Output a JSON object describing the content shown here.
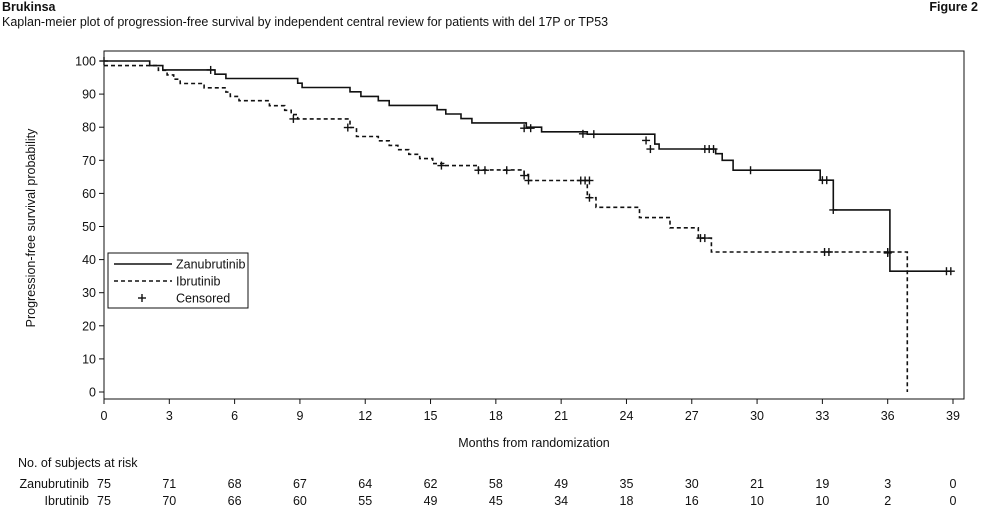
{
  "header": {
    "brand": "Brukinsa",
    "figure_label": "Figure 2",
    "subtitle": "Kaplan-meier plot of progression-free survival by independent central review for patients with del 17P or TP53"
  },
  "chart_data": {
    "type": "line",
    "title": "Kaplan-meier plot of progression-free survival by independent central review for patients with del 17P or TP53",
    "xlabel": "Months from randomization",
    "ylabel": "Progression-free survival probability",
    "xlim": [
      0,
      39
    ],
    "ylim": [
      0,
      100
    ],
    "xticks": [
      0,
      3,
      6,
      9,
      12,
      15,
      18,
      21,
      24,
      27,
      30,
      33,
      36,
      39
    ],
    "yticks": [
      0,
      10,
      20,
      30,
      40,
      50,
      60,
      70,
      80,
      90,
      100
    ],
    "grid": false,
    "legend_position": "lower-left",
    "legend": [
      "Zanubrutinib",
      "Ibrutinib",
      "Censored"
    ],
    "series": [
      {
        "name": "Zanubrutinib",
        "line_style": "solid",
        "color": "#111111",
        "steps": [
          [
            0,
            100
          ],
          [
            2.1,
            98.6
          ],
          [
            2.7,
            97.3
          ],
          [
            5.1,
            96.0
          ],
          [
            5.6,
            94.7
          ],
          [
            8.9,
            93.3
          ],
          [
            9.1,
            92.0
          ],
          [
            11.3,
            90.7
          ],
          [
            11.8,
            89.3
          ],
          [
            12.6,
            88.0
          ],
          [
            13.1,
            86.6
          ],
          [
            15.3,
            85.3
          ],
          [
            15.7,
            84.0
          ],
          [
            16.4,
            82.6
          ],
          [
            16.9,
            81.3
          ],
          [
            19.4,
            80.0
          ],
          [
            20.1,
            78.6
          ],
          [
            22.2,
            77.9
          ],
          [
            25.3,
            74.9
          ],
          [
            25.5,
            73.4
          ],
          [
            28.1,
            72.0
          ],
          [
            28.4,
            70.0
          ],
          [
            28.9,
            67.0
          ],
          [
            32.9,
            64.0
          ],
          [
            33.5,
            55.0
          ],
          [
            36.1,
            36.5
          ],
          [
            38.9,
            36.5
          ]
        ],
        "censored": [
          [
            0,
            100
          ],
          [
            4.9,
            97.3
          ],
          [
            19.3,
            79.7
          ],
          [
            19.6,
            79.7
          ],
          [
            22.0,
            78.0
          ],
          [
            22.5,
            77.9
          ],
          [
            24.9,
            76.0
          ],
          [
            25.1,
            73.4
          ],
          [
            27.6,
            73.4
          ],
          [
            27.8,
            73.4
          ],
          [
            28.0,
            73.4
          ],
          [
            29.7,
            67.0
          ],
          [
            33.0,
            64.0
          ],
          [
            33.2,
            64.0
          ],
          [
            33.5,
            55.0
          ],
          [
            36.0,
            42.0
          ],
          [
            38.7,
            36.5
          ],
          [
            38.9,
            36.5
          ]
        ]
      },
      {
        "name": "Ibrutinib",
        "line_style": "dashed",
        "color": "#111111",
        "steps": [
          [
            0,
            98.6
          ],
          [
            2.5,
            97.2
          ],
          [
            2.9,
            95.8
          ],
          [
            3.2,
            94.5
          ],
          [
            3.5,
            93.2
          ],
          [
            4.6,
            91.9
          ],
          [
            5.6,
            90.6
          ],
          [
            5.8,
            89.3
          ],
          [
            6.2,
            88.0
          ],
          [
            7.6,
            86.5
          ],
          [
            8.3,
            85.1
          ],
          [
            8.6,
            83.8
          ],
          [
            8.9,
            82.5
          ],
          [
            11.3,
            79.9
          ],
          [
            11.6,
            77.2
          ],
          [
            12.6,
            75.9
          ],
          [
            13.1,
            74.5
          ],
          [
            13.5,
            73.2
          ],
          [
            14.0,
            71.8
          ],
          [
            14.5,
            70.5
          ],
          [
            15.1,
            69.0
          ],
          [
            15.6,
            68.4
          ],
          [
            17.2,
            67.1
          ],
          [
            19.3,
            65.7
          ],
          [
            19.5,
            63.9
          ],
          [
            22.2,
            58.7
          ],
          [
            22.6,
            55.8
          ],
          [
            24.6,
            52.7
          ],
          [
            26.0,
            49.6
          ],
          [
            27.3,
            46.5
          ],
          [
            27.9,
            42.3
          ],
          [
            36.9,
            0
          ]
        ],
        "censored": [
          [
            8.7,
            82.5
          ],
          [
            11.2,
            79.9
          ],
          [
            15.5,
            68.4
          ],
          [
            17.2,
            67.0
          ],
          [
            17.5,
            67.0
          ],
          [
            18.5,
            67.0
          ],
          [
            19.3,
            65.4
          ],
          [
            19.5,
            63.9
          ],
          [
            21.9,
            63.9
          ],
          [
            22.1,
            63.9
          ],
          [
            22.3,
            63.9
          ],
          [
            22.3,
            58.7
          ],
          [
            27.4,
            46.5
          ],
          [
            27.6,
            46.5
          ],
          [
            33.1,
            42.3
          ],
          [
            33.3,
            42.3
          ],
          [
            36.0,
            42.3
          ]
        ]
      }
    ]
  },
  "risk_table": {
    "heading": "No. of subjects at risk",
    "rows": [
      {
        "label": "Zanubrutinib",
        "values": [
          "75",
          "71",
          "68",
          "67",
          "64",
          "62",
          "58",
          "49",
          "35",
          "30",
          "21",
          "19",
          "3",
          "0"
        ]
      },
      {
        "label": "Ibrutinib",
        "values": [
          "75",
          "70",
          "66",
          "60",
          "55",
          "49",
          "45",
          "34",
          "18",
          "16",
          "10",
          "10",
          "2",
          "0"
        ]
      }
    ]
  }
}
